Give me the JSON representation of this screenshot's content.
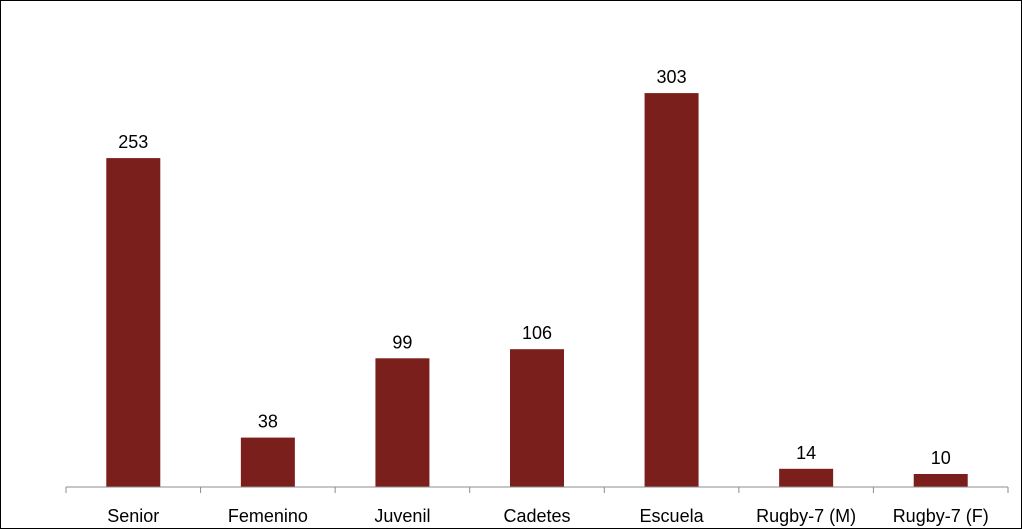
{
  "chart_data": {
    "type": "bar",
    "title": "",
    "xlabel": "",
    "ylabel": "",
    "categories": [
      "Senior",
      "Femenino",
      "Juvenil",
      "Cadetes",
      "Escuela",
      "Rugby-7 (M)",
      "Rugby-7 (F)"
    ],
    "values": [
      253,
      38,
      99,
      106,
      303,
      14,
      10
    ],
    "ylim": [
      0,
      350
    ],
    "grid": false,
    "legend": "none",
    "data_labels": true,
    "bar_color": "#7b1f1c"
  }
}
